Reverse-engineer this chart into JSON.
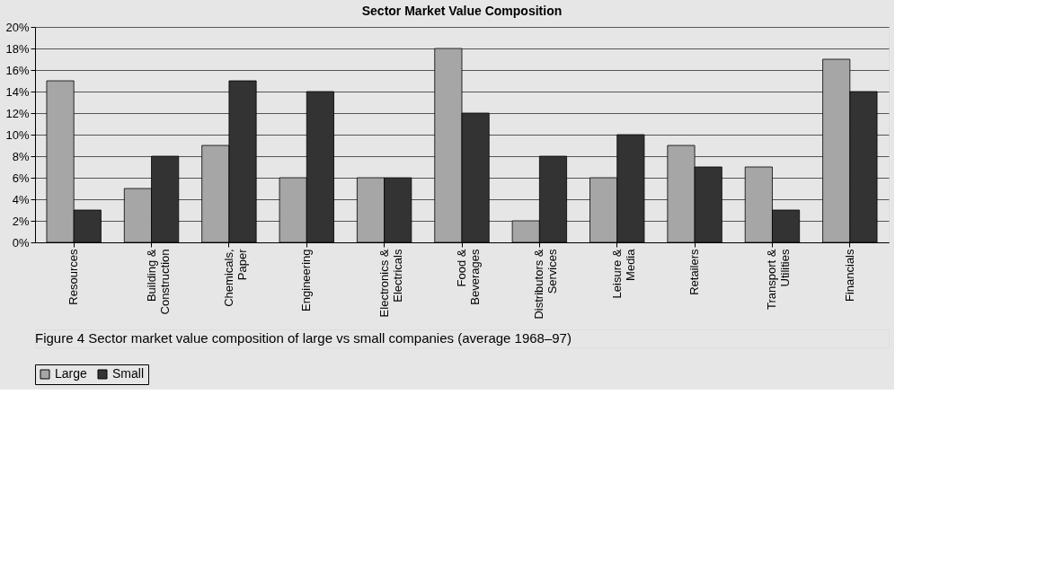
{
  "chart_data": {
    "type": "bar",
    "title": "Sector Market Value Composition",
    "categories": [
      "Resources",
      "Building &\nConstruction",
      "Chemicals,\nPaper",
      "Engineering",
      "Electronics &\nElectricals",
      "Food &\nBeverages",
      "Distributors &\nServices",
      "Leisure &\nMedia",
      "Retailers",
      "Transport &\nUtilities",
      "Financials"
    ],
    "series": [
      {
        "name": "Large",
        "color": "#a6a6a6",
        "values": [
          15,
          5,
          9,
          6,
          6,
          18,
          2,
          6,
          9,
          7,
          17
        ]
      },
      {
        "name": "Small",
        "color": "#333333",
        "values": [
          3,
          8,
          15,
          14,
          6,
          12,
          8,
          10,
          7,
          3,
          14
        ]
      }
    ],
    "ylim": [
      0,
      20
    ],
    "yticks": [
      {
        "value": 0,
        "label": "0%"
      },
      {
        "value": 2,
        "label": "2%"
      },
      {
        "value": 4,
        "label": "4%"
      },
      {
        "value": 6,
        "label": "6%"
      },
      {
        "value": 8,
        "label": "8%"
      },
      {
        "value": 10,
        "label": "10%"
      },
      {
        "value": 12,
        "label": "12%"
      },
      {
        "value": 14,
        "label": "14%"
      },
      {
        "value": 16,
        "label": "16%"
      },
      {
        "value": 18,
        "label": "18%"
      },
      {
        "value": 20,
        "label": "20%"
      }
    ],
    "grid": "y",
    "legend": "bottom",
    "annotations": [
      "Figure 4   Sector market value composition of large vs small companies (average 1968–97)"
    ]
  }
}
